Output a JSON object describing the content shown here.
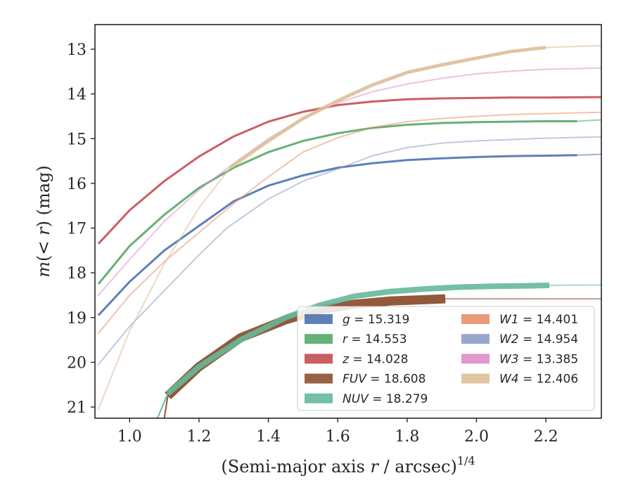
{
  "chart_data": {
    "type": "line",
    "title": "",
    "xlabel": "(Semi-major axis r / arcsec)^{1/4}",
    "ylabel": "m(< r) (mag)",
    "xlim": [
      0.9,
      2.36
    ],
    "ylim": [
      21.25,
      12.45
    ],
    "y_inverted": true,
    "xticks": [
      "1.0",
      "1.2",
      "1.4",
      "1.6",
      "1.8",
      "2.0",
      "2.2"
    ],
    "yticks": [
      "13",
      "14",
      "15",
      "16",
      "17",
      "18",
      "19",
      "20",
      "21"
    ],
    "grid": false,
    "legend": {
      "placement": "lower-right",
      "columns": 2,
      "entries": [
        {
          "band": "g",
          "label": "g = 15.319",
          "color": "#4c72b0"
        },
        {
          "band": "r",
          "label": "r = 14.553",
          "color": "#55a868"
        },
        {
          "band": "z",
          "label": "z = 14.028",
          "color": "#c44e52"
        },
        {
          "band": "FUV",
          "label": "FUV = 18.608",
          "color": "#8c5030"
        },
        {
          "band": "NUV",
          "label": "NUV = 18.279",
          "color": "#66b89a"
        },
        {
          "band": "W1",
          "label": "W1 = 14.401",
          "color": "#e8906a"
        },
        {
          "band": "W2",
          "label": "W2 = 14.954",
          "color": "#8c9cc4"
        },
        {
          "band": "W3",
          "label": "W3 = 13.385",
          "color": "#dd8ec8"
        },
        {
          "band": "W4",
          "label": "W4 = 12.406",
          "color": "#dcc09a"
        }
      ]
    },
    "series": [
      {
        "name": "g",
        "color": "#4c72b0",
        "solid": {
          "x": [
            0.91,
            1.0,
            1.1,
            1.2,
            1.3,
            1.4,
            1.5,
            1.6,
            1.7,
            1.8,
            1.9,
            2.0,
            2.1,
            2.2,
            2.29
          ],
          "y": [
            18.95,
            18.2,
            17.5,
            16.95,
            16.4,
            16.05,
            15.82,
            15.65,
            15.55,
            15.48,
            15.44,
            15.41,
            15.39,
            15.38,
            15.37
          ]
        },
        "faint": {
          "x": [
            2.29,
            2.36
          ],
          "y": [
            15.37,
            15.35
          ]
        }
      },
      {
        "name": "r",
        "color": "#55a868",
        "solid": {
          "x": [
            0.91,
            1.0,
            1.1,
            1.2,
            1.3,
            1.4,
            1.5,
            1.6,
            1.7,
            1.8,
            1.9,
            2.0,
            2.1,
            2.2,
            2.29
          ],
          "y": [
            18.25,
            17.4,
            16.7,
            16.1,
            15.65,
            15.3,
            15.05,
            14.88,
            14.76,
            14.69,
            14.65,
            14.63,
            14.62,
            14.61,
            14.61
          ]
        },
        "faint": {
          "x": [
            2.29,
            2.36
          ],
          "y": [
            14.61,
            14.58
          ]
        }
      },
      {
        "name": "z",
        "color": "#c44e52",
        "solid": {
          "x": [
            0.91,
            1.0,
            1.1,
            1.2,
            1.3,
            1.4,
            1.5,
            1.6,
            1.7,
            1.8,
            1.9,
            2.0,
            2.1,
            2.2,
            2.36
          ],
          "y": [
            17.35,
            16.6,
            15.95,
            15.4,
            14.95,
            14.62,
            14.4,
            14.25,
            14.17,
            14.12,
            14.1,
            14.09,
            14.08,
            14.08,
            14.07
          ]
        },
        "faint": null
      },
      {
        "name": "FUV",
        "color": "#8c5030",
        "solid": {
          "x": [
            1.11,
            1.2,
            1.32,
            1.45,
            1.55,
            1.65,
            1.75,
            1.85,
            1.91
          ],
          "y": [
            20.75,
            20.1,
            19.45,
            19.05,
            18.82,
            18.7,
            18.63,
            18.6,
            18.58
          ]
        },
        "faint": {
          "x": [
            1.91,
            2.36
          ],
          "y": [
            18.58,
            18.58
          ]
        },
        "start_segment": {
          "x": [
            1.1,
            1.11
          ],
          "y": [
            21.25,
            20.75
          ]
        }
      },
      {
        "name": "NUV",
        "color": "#66b89a",
        "solid": {
          "x": [
            1.11,
            1.2,
            1.32,
            1.45,
            1.55,
            1.65,
            1.75,
            1.85,
            1.95,
            2.05,
            2.15,
            2.21
          ],
          "y": [
            20.7,
            20.1,
            19.5,
            19.0,
            18.72,
            18.52,
            18.42,
            18.36,
            18.32,
            18.3,
            18.29,
            18.28
          ]
        },
        "faint": {
          "x": [
            2.21,
            2.36
          ],
          "y": [
            18.28,
            18.27
          ]
        },
        "start_segment": {
          "x": [
            1.08,
            1.11
          ],
          "y": [
            21.25,
            20.7
          ]
        }
      },
      {
        "name": "W1",
        "color": "#e8906a",
        "solid": null,
        "faint": {
          "x": [
            0.91,
            1.0,
            1.1,
            1.2,
            1.3,
            1.4,
            1.5,
            1.6,
            1.7,
            1.8,
            1.9,
            2.0,
            2.1,
            2.2,
            2.36
          ],
          "y": [
            19.35,
            18.5,
            17.75,
            17.1,
            16.45,
            15.85,
            15.3,
            14.98,
            14.75,
            14.62,
            14.55,
            14.5,
            14.46,
            14.44,
            14.41
          ]
        }
      },
      {
        "name": "W2",
        "color": "#8c9cc4",
        "solid": null,
        "faint": {
          "x": [
            0.91,
            1.0,
            1.1,
            1.2,
            1.28,
            1.4,
            1.5,
            1.6,
            1.7,
            1.8,
            1.9,
            2.0,
            2.1,
            2.2,
            2.36
          ],
          "y": [
            20.05,
            19.2,
            18.4,
            17.6,
            17.0,
            16.35,
            15.95,
            15.68,
            15.38,
            15.2,
            15.1,
            15.05,
            15.02,
            14.99,
            14.96
          ]
        }
      },
      {
        "name": "W3",
        "color": "#dd8ec8",
        "solid": null,
        "faint": {
          "x": [
            0.91,
            1.0,
            1.1,
            1.2,
            1.3,
            1.4,
            1.5,
            1.6,
            1.7,
            1.8,
            1.9,
            2.0,
            2.1,
            2.2,
            2.36
          ],
          "y": [
            18.5,
            17.7,
            16.85,
            16.15,
            15.55,
            15.0,
            14.55,
            14.2,
            13.95,
            13.78,
            13.65,
            13.55,
            13.49,
            13.45,
            13.42
          ]
        }
      },
      {
        "name": "W4",
        "color": "#dcc09a",
        "solid": null,
        "faint": {
          "x": [
            0.91,
            1.0,
            1.1,
            1.2,
            1.29,
            1.4,
            1.5,
            1.6,
            1.7,
            1.8,
            1.9,
            2.0,
            2.1,
            2.2,
            2.36
          ],
          "y": [
            21.05,
            19.3,
            17.8,
            16.55,
            15.65,
            15.05,
            14.55,
            14.15,
            13.8,
            13.52,
            13.35,
            13.2,
            13.05,
            12.96,
            12.92
          ]
        }
      }
    ]
  }
}
